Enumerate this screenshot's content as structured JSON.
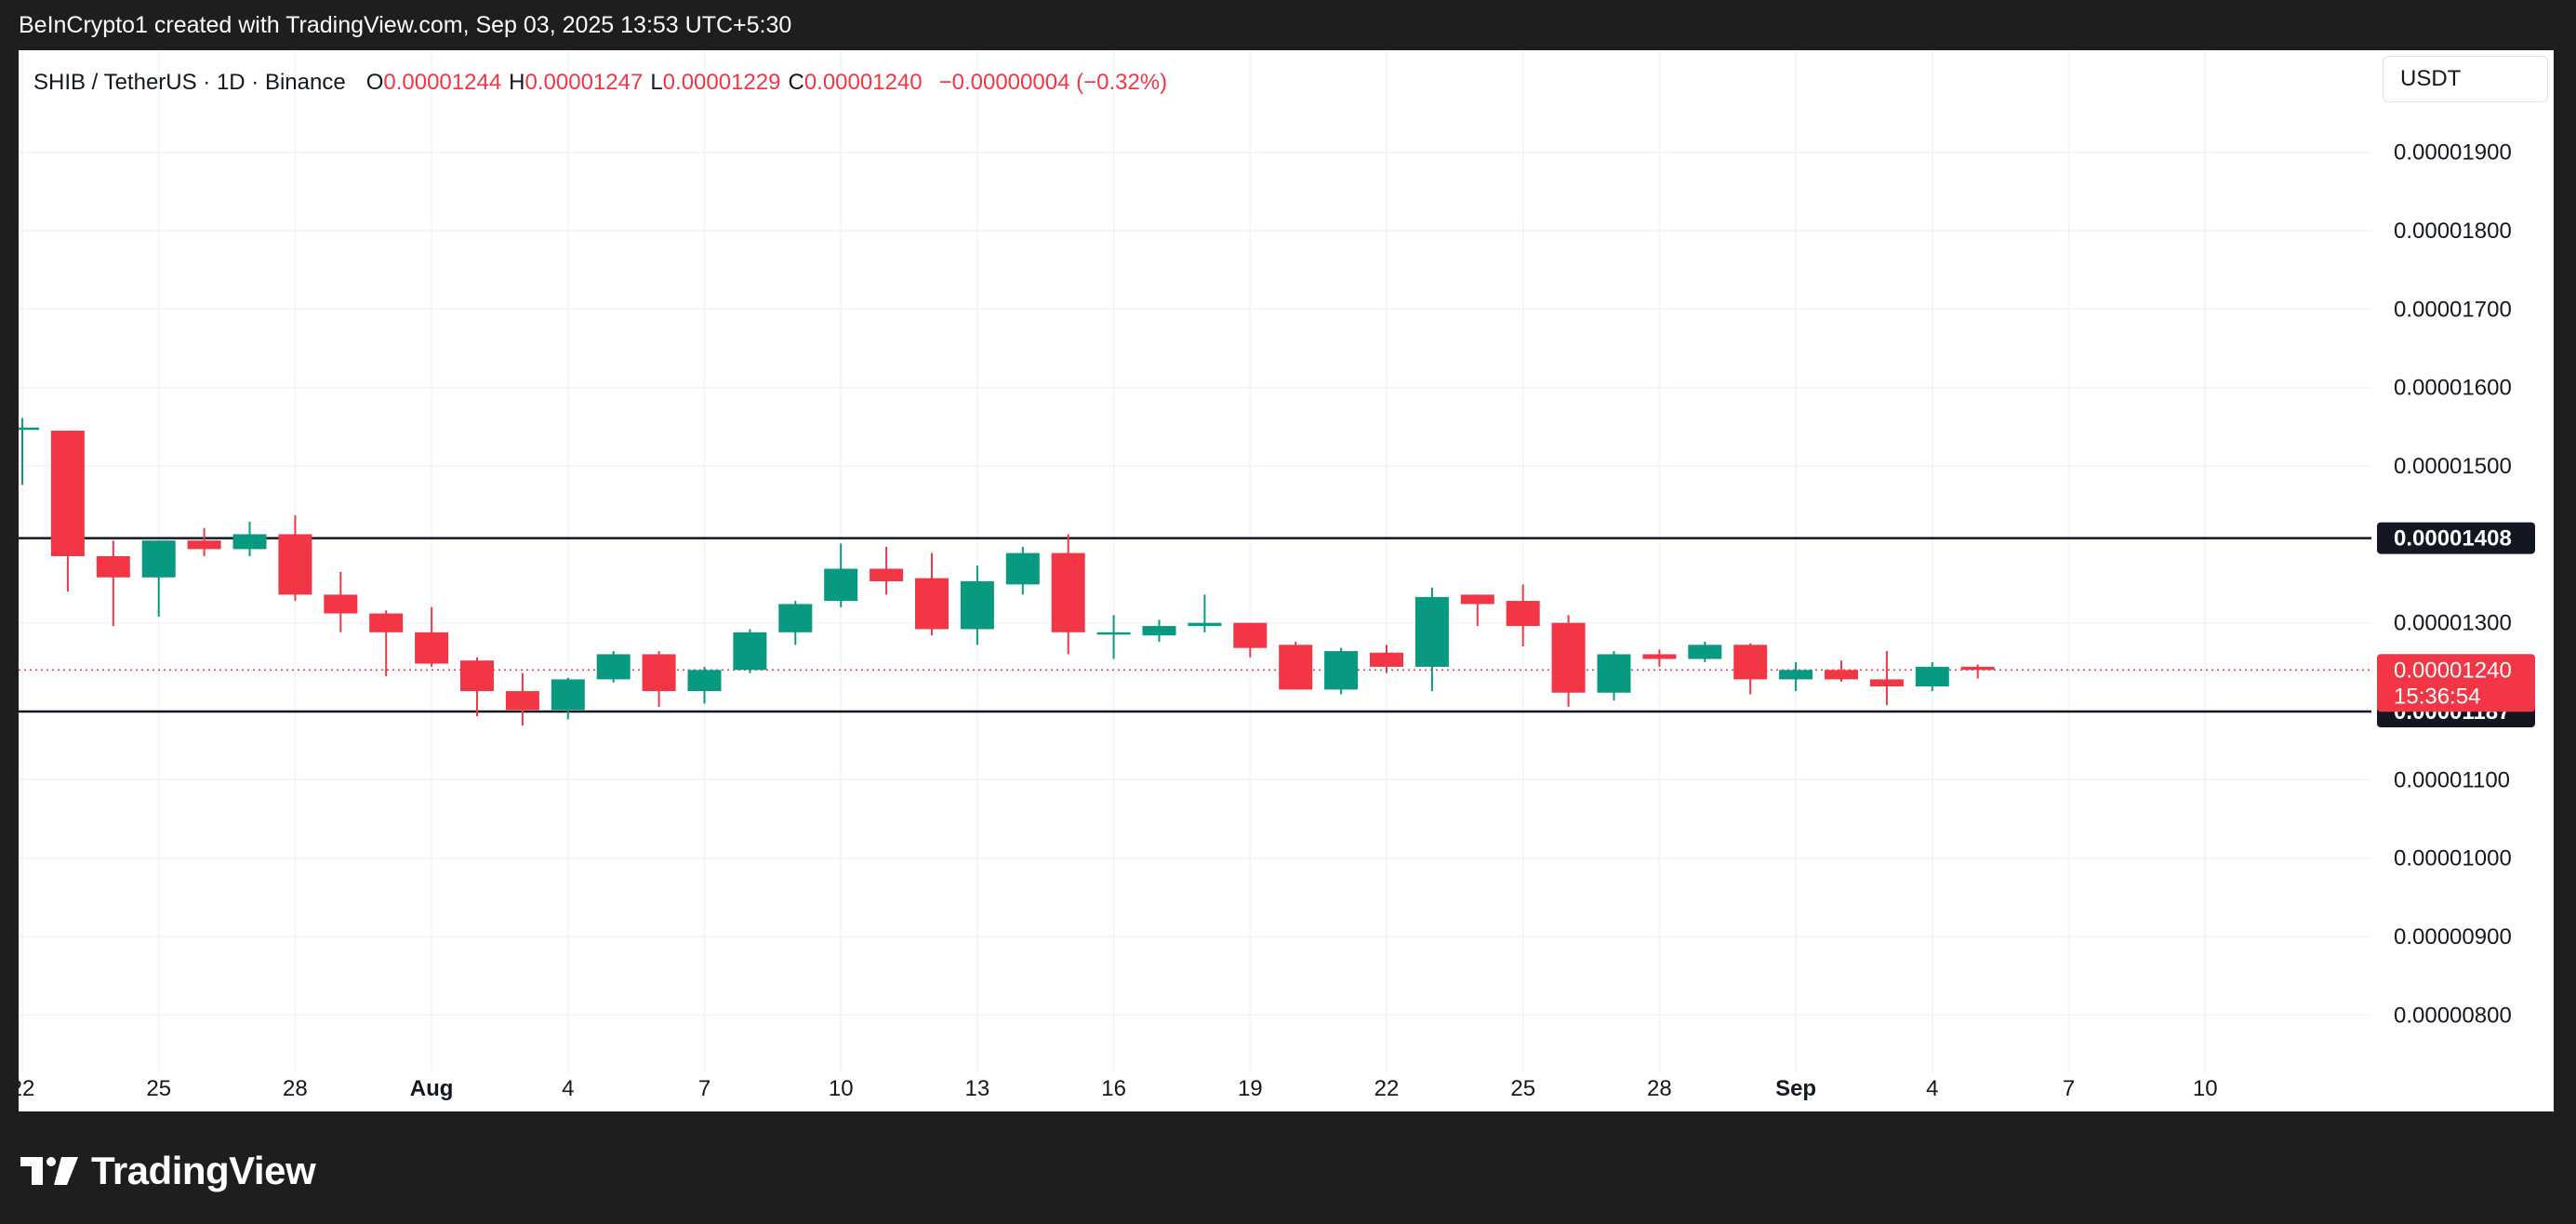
{
  "header": {
    "attribution": "BeInCrypto1 created with TradingView.com, Sep 03, 2025 13:53 UTC+5:30"
  },
  "legend": {
    "symbol": "SHIB / TetherUS · 1D · Binance",
    "open_label": "O",
    "open": "0.00001244",
    "high_label": "H",
    "high": "0.00001247",
    "low_label": "L",
    "low": "0.00001229",
    "close_label": "C",
    "close": "0.00001240",
    "change": "−0.00000004 (−0.32%)"
  },
  "currency": "USDT",
  "brand": {
    "name": "TradingView"
  },
  "colors": {
    "up": "#089981",
    "down": "#f23645",
    "grid": "#f0f3fa",
    "level_line": "#131722",
    "axis_text": "#131722"
  },
  "chart_data": {
    "type": "candlestick",
    "y_range": [
      7.4e-06,
      2.03e-05
    ],
    "y_ticks": [
      "0.00001900",
      "0.00001800",
      "0.00001700",
      "0.00001600",
      "0.00001500",
      "0.00001300",
      "0.00001100",
      "0.00001000",
      "0.00000900",
      "0.00000800"
    ],
    "x_ticks": [
      "22",
      "25",
      "28",
      "Aug",
      "4",
      "7",
      "10",
      "13",
      "16",
      "19",
      "22",
      "25",
      "28",
      "Sep",
      "4",
      "7",
      "10"
    ],
    "levels": [
      {
        "label": "0.00001408",
        "value": 1.408e-05
      },
      {
        "label": "0.00001187",
        "value": 1.187e-05
      }
    ],
    "current_price": {
      "label": "0.00001240",
      "value": 1.24e-05,
      "countdown": "15:36:54"
    },
    "candles": [
      {
        "date": "Jul 22",
        "o": 1.549e-05,
        "h": 1.561e-05,
        "l": 1.476e-05,
        "c": 1.549e-05
      },
      {
        "date": "Jul 23",
        "o": 1.545e-05,
        "h": 1.545e-05,
        "l": 1.34e-05,
        "c": 1.385e-05
      },
      {
        "date": "Jul 24",
        "o": 1.385e-05,
        "h": 1.405e-05,
        "l": 1.296e-05,
        "c": 1.358e-05
      },
      {
        "date": "Jul 25",
        "o": 1.358e-05,
        "h": 1.405e-05,
        "l": 1.308e-05,
        "c": 1.405e-05
      },
      {
        "date": "Jul 26",
        "o": 1.405e-05,
        "h": 1.421e-05,
        "l": 1.385e-05,
        "c": 1.394e-05
      },
      {
        "date": "Jul 27",
        "o": 1.394e-05,
        "h": 1.429e-05,
        "l": 1.385e-05,
        "c": 1.413e-05
      },
      {
        "date": "Jul 28",
        "o": 1.413e-05,
        "h": 1.437e-05,
        "l": 1.328e-05,
        "c": 1.336e-05
      },
      {
        "date": "Jul 29",
        "o": 1.336e-05,
        "h": 1.365e-05,
        "l": 1.288e-05,
        "c": 1.312e-05
      },
      {
        "date": "Jul 30",
        "o": 1.312e-05,
        "h": 1.316e-05,
        "l": 1.232e-05,
        "c": 1.288e-05
      },
      {
        "date": "Jul 31",
        "o": 1.288e-05,
        "h": 1.32e-05,
        "l": 1.244e-05,
        "c": 1.248e-05
      },
      {
        "date": "Aug 1",
        "o": 1.252e-05,
        "h": 1.256e-05,
        "l": 1.181e-05,
        "c": 1.213e-05
      },
      {
        "date": "Aug 2",
        "o": 1.213e-05,
        "h": 1.236e-05,
        "l": 1.169e-05,
        "c": 1.189e-05
      },
      {
        "date": "Aug 3",
        "o": 1.189e-05,
        "h": 1.23e-05,
        "l": 1.177e-05,
        "c": 1.228e-05
      },
      {
        "date": "Aug 4",
        "o": 1.228e-05,
        "h": 1.264e-05,
        "l": 1.224e-05,
        "c": 1.26e-05
      },
      {
        "date": "Aug 5",
        "o": 1.26e-05,
        "h": 1.264e-05,
        "l": 1.193e-05,
        "c": 1.213e-05
      },
      {
        "date": "Aug 6",
        "o": 1.213e-05,
        "h": 1.244e-05,
        "l": 1.197e-05,
        "c": 1.24e-05
      },
      {
        "date": "Aug 7",
        "o": 1.24e-05,
        "h": 1.292e-05,
        "l": 1.236e-05,
        "c": 1.288e-05
      },
      {
        "date": "Aug 8",
        "o": 1.288e-05,
        "h": 1.328e-05,
        "l": 1.272e-05,
        "c": 1.324e-05
      },
      {
        "date": "Aug 9",
        "o": 1.328e-05,
        "h": 1.401e-05,
        "l": 1.32e-05,
        "c": 1.369e-05
      },
      {
        "date": "Aug 10",
        "o": 1.369e-05,
        "h": 1.397e-05,
        "l": 1.336e-05,
        "c": 1.353e-05
      },
      {
        "date": "Aug 11",
        "o": 1.357e-05,
        "h": 1.389e-05,
        "l": 1.284e-05,
        "c": 1.292e-05
      },
      {
        "date": "Aug 12",
        "o": 1.292e-05,
        "h": 1.373e-05,
        "l": 1.272e-05,
        "c": 1.353e-05
      },
      {
        "date": "Aug 13",
        "o": 1.349e-05,
        "h": 1.397e-05,
        "l": 1.336e-05,
        "c": 1.389e-05
      },
      {
        "date": "Aug 14",
        "o": 1.389e-05,
        "h": 1.413e-05,
        "l": 1.26e-05,
        "c": 1.288e-05
      },
      {
        "date": "Aug 15",
        "o": 1.288e-05,
        "h": 1.31e-05,
        "l": 1.254e-05,
        "c": 1.288e-05
      },
      {
        "date": "Aug 16",
        "o": 1.284e-05,
        "h": 1.304e-05,
        "l": 1.276e-05,
        "c": 1.296e-05
      },
      {
        "date": "Aug 17",
        "o": 1.296e-05,
        "h": 1.336e-05,
        "l": 1.288e-05,
        "c": 1.3e-05
      },
      {
        "date": "Aug 18",
        "o": 1.3e-05,
        "h": 1.3e-05,
        "l": 1.256e-05,
        "c": 1.268e-05
      },
      {
        "date": "Aug 19",
        "o": 1.272e-05,
        "h": 1.276e-05,
        "l": 1.215e-05,
        "c": 1.215e-05
      },
      {
        "date": "Aug 20",
        "o": 1.215e-05,
        "h": 1.268e-05,
        "l": 1.209e-05,
        "c": 1.264e-05
      },
      {
        "date": "Aug 21",
        "o": 1.262e-05,
        "h": 1.272e-05,
        "l": 1.236e-05,
        "c": 1.244e-05
      },
      {
        "date": "Aug 22",
        "o": 1.244e-05,
        "h": 1.345e-05,
        "l": 1.213e-05,
        "c": 1.333e-05
      },
      {
        "date": "Aug 23",
        "o": 1.336e-05,
        "h": 1.336e-05,
        "l": 1.296e-05,
        "c": 1.324e-05
      },
      {
        "date": "Aug 24",
        "o": 1.328e-05,
        "h": 1.349e-05,
        "l": 1.27e-05,
        "c": 1.296e-05
      },
      {
        "date": "Aug 25",
        "o": 1.3e-05,
        "h": 1.31e-05,
        "l": 1.193e-05,
        "c": 1.211e-05
      },
      {
        "date": "Aug 26",
        "o": 1.211e-05,
        "h": 1.264e-05,
        "l": 1.201e-05,
        "c": 1.26e-05
      },
      {
        "date": "Aug 27",
        "o": 1.26e-05,
        "h": 1.266e-05,
        "l": 1.244e-05,
        "c": 1.254e-05
      },
      {
        "date": "Aug 28",
        "o": 1.254e-05,
        "h": 1.276e-05,
        "l": 1.25e-05,
        "c": 1.272e-05
      },
      {
        "date": "Aug 29",
        "o": 1.272e-05,
        "h": 1.274e-05,
        "l": 1.209e-05,
        "c": 1.228e-05
      },
      {
        "date": "Aug 30",
        "o": 1.228e-05,
        "h": 1.25e-05,
        "l": 1.213e-05,
        "c": 1.24e-05
      },
      {
        "date": "Aug 31",
        "o": 1.24e-05,
        "h": 1.252e-05,
        "l": 1.225e-05,
        "c": 1.228e-05
      },
      {
        "date": "Sep 1",
        "o": 1.228e-05,
        "h": 1.264e-05,
        "l": 1.195e-05,
        "c": 1.219e-05
      },
      {
        "date": "Sep 2",
        "o": 1.219e-05,
        "h": 1.25e-05,
        "l": 1.213e-05,
        "c": 1.244e-05
      },
      {
        "date": "Sep 3",
        "o": 1.244e-05,
        "h": 1.247e-05,
        "l": 1.229e-05,
        "c": 1.24e-05
      }
    ]
  }
}
